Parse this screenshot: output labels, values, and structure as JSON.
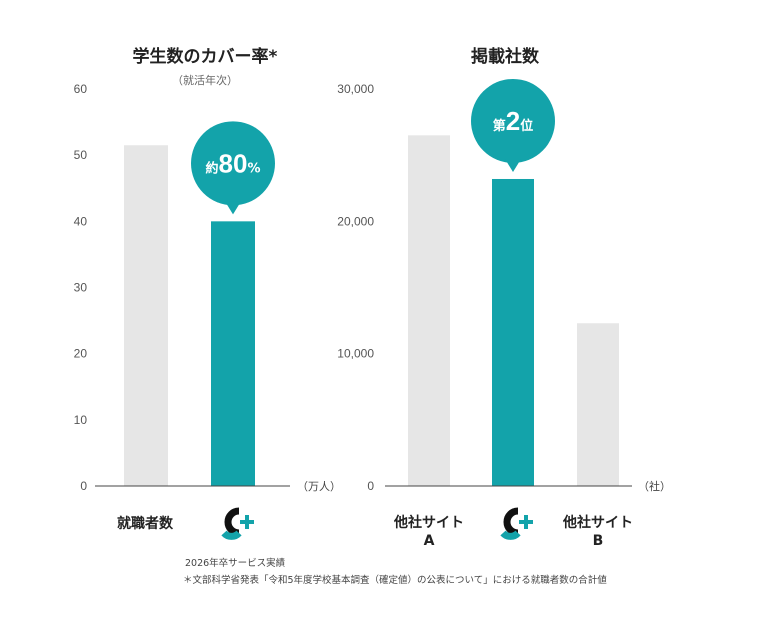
{
  "colors": {
    "brand": "#13A3AA",
    "gray_bar": "#E6E6E6",
    "axis": "#444444",
    "logo_dark": "#111111"
  },
  "chart_data": [
    {
      "type": "bar",
      "title": "学生数のカバー率*",
      "subtitle": "（就活年次）",
      "categories": [
        "就職者数",
        "logo-cplus"
      ],
      "values": [
        51.5,
        40
      ],
      "ylim": [
        0,
        60
      ],
      "yticks": [
        "0",
        "10",
        "20",
        "30",
        "40",
        "50",
        "60"
      ],
      "unit": "（万人）",
      "highlight_index": 1,
      "callout": {
        "prefix": "約",
        "value": "80",
        "suffix": "%"
      }
    },
    {
      "type": "bar",
      "title": "掲載社数",
      "categories": [
        "他社サイト\nA",
        "logo-cplus",
        "他社サイト\nB"
      ],
      "values": [
        26500,
        23200,
        12300
      ],
      "ylim": [
        0,
        30000
      ],
      "yticks": [
        "0",
        "10,000",
        "20,000",
        "30,000"
      ],
      "unit": "（社）",
      "highlight_index": 1,
      "callout": {
        "prefix": "第",
        "value": "2",
        "suffix": "位"
      }
    }
  ],
  "footnotes": {
    "line1": "2026年卒サービス実績",
    "line2": "＊文部科学省発表「令和5年度学校基本調査（確定値）の公表について」における就職者数の合計値"
  }
}
